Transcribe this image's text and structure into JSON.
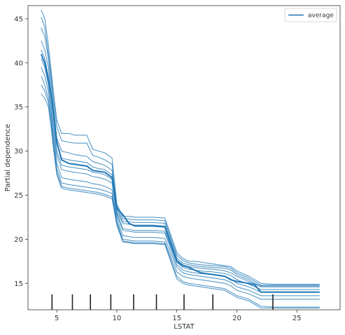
{
  "chart_data": {
    "type": "line",
    "xlabel": "LSTAT",
    "ylabel": "Partial dependence",
    "xlim": [
      2.6,
      28.6
    ],
    "ylim": [
      12.0,
      46.5
    ],
    "x_ticks": [
      5,
      10,
      15,
      20,
      25
    ],
    "y_ticks": [
      15,
      20,
      25,
      30,
      35,
      40,
      45
    ],
    "grid": false,
    "legend": {
      "position": "top-right",
      "entries": [
        "average"
      ]
    },
    "series_color": "#1f77b4",
    "x": [
      3.7,
      4.0,
      4.3,
      4.5,
      4.7,
      5.0,
      5.4,
      6.0,
      6.5,
      7.0,
      7.5,
      8.0,
      8.5,
      9.0,
      9.6,
      10.0,
      10.5,
      11.0,
      11.5,
      12.0,
      13.0,
      14.0,
      15.0,
      15.5,
      16.0,
      16.5,
      17.0,
      18.0,
      19.0,
      19.5,
      20.0,
      21.0,
      21.5,
      22.0,
      23.0,
      25.0,
      26.9
    ],
    "average": [
      41.0,
      40.0,
      38.0,
      36.5,
      34.5,
      31.0,
      29.0,
      28.6,
      28.5,
      28.4,
      28.3,
      27.8,
      27.7,
      27.6,
      27.0,
      23.5,
      22.8,
      21.8,
      21.5,
      21.5,
      21.5,
      21.4,
      17.5,
      17.0,
      16.8,
      16.5,
      16.2,
      16.0,
      15.8,
      15.4,
      15.2,
      15.0,
      14.8,
      14.0,
      14.0,
      14.0,
      14.0
    ],
    "ice_curves": [
      [
        46.0,
        45.0,
        42.0,
        39.5,
        37.0,
        33.5,
        32.0,
        32.0,
        31.8,
        31.8,
        31.8,
        30.2,
        30.0,
        29.8,
        29.2,
        24.0,
        22.6,
        22.6,
        22.5,
        22.5,
        22.5,
        22.4,
        18.5,
        17.8,
        17.5,
        17.5,
        17.4,
        17.2,
        17.0,
        16.9,
        16.4,
        15.8,
        15.4,
        15.0,
        14.9,
        14.9,
        14.9
      ],
      [
        45.2,
        44.0,
        41.0,
        38.8,
        36.2,
        32.8,
        31.2,
        31.0,
        30.9,
        30.9,
        30.9,
        29.5,
        29.3,
        29.0,
        28.5,
        23.8,
        22.3,
        22.3,
        22.2,
        22.2,
        22.2,
        22.1,
        18.2,
        17.6,
        17.3,
        17.2,
        17.1,
        17.0,
        16.9,
        16.7,
        16.2,
        15.6,
        15.2,
        14.8,
        14.8,
        14.8,
        14.8
      ],
      [
        44.0,
        43.0,
        40.5,
        38.0,
        35.5,
        31.5,
        30.0,
        29.8,
        29.6,
        29.5,
        29.4,
        28.8,
        28.6,
        28.4,
        27.8,
        23.5,
        22.0,
        22.0,
        21.9,
        21.9,
        21.9,
        21.8,
        17.9,
        17.3,
        17.1,
        17.0,
        16.9,
        16.8,
        16.7,
        16.5,
        16.0,
        15.4,
        15.0,
        14.7,
        14.7,
        14.7,
        14.7
      ],
      [
        42.5,
        41.5,
        39.5,
        37.0,
        34.8,
        31.0,
        29.2,
        29.0,
        28.9,
        28.8,
        28.7,
        28.2,
        28.0,
        27.9,
        27.3,
        23.2,
        21.8,
        21.7,
        21.6,
        21.6,
        21.6,
        21.5,
        17.7,
        17.1,
        16.9,
        16.8,
        16.7,
        16.6,
        16.4,
        16.2,
        15.8,
        15.2,
        14.9,
        14.6,
        14.6,
        14.6,
        14.6
      ],
      [
        41.5,
        40.5,
        38.5,
        36.5,
        34.0,
        30.0,
        28.4,
        28.2,
        28.1,
        28.0,
        27.9,
        27.6,
        27.5,
        27.3,
        26.8,
        23.0,
        21.2,
        21.1,
        21.0,
        21.0,
        21.0,
        20.9,
        17.4,
        16.8,
        16.6,
        16.5,
        16.4,
        16.3,
        16.1,
        15.9,
        15.4,
        14.9,
        14.6,
        14.3,
        14.3,
        14.3,
        14.3
      ],
      [
        40.5,
        39.5,
        37.5,
        35.5,
        33.0,
        29.5,
        27.9,
        27.7,
        27.6,
        27.5,
        27.4,
        27.1,
        27.0,
        26.8,
        26.4,
        22.8,
        21.0,
        20.9,
        20.8,
        20.8,
        20.8,
        20.7,
        17.1,
        16.5,
        16.3,
        16.2,
        16.1,
        16.0,
        15.8,
        15.5,
        15.0,
        14.6,
        14.3,
        14.0,
        14.0,
        14.0,
        14.0
      ],
      [
        39.5,
        38.5,
        36.8,
        34.8,
        32.2,
        28.6,
        27.0,
        26.8,
        26.7,
        26.6,
        26.5,
        26.3,
        26.2,
        26.0,
        25.6,
        22.4,
        20.4,
        20.3,
        20.2,
        20.2,
        20.2,
        20.1,
        16.8,
        16.2,
        16.0,
        15.9,
        15.8,
        15.6,
        15.4,
        15.1,
        14.6,
        14.2,
        13.9,
        13.6,
        13.6,
        13.6,
        13.6
      ],
      [
        38.5,
        37.5,
        36.0,
        34.0,
        31.5,
        28.0,
        26.4,
        26.2,
        26.1,
        26.0,
        25.9,
        25.8,
        25.7,
        25.5,
        25.2,
        22.0,
        20.0,
        19.9,
        19.8,
        19.8,
        19.8,
        19.7,
        16.3,
        15.8,
        15.6,
        15.5,
        15.4,
        15.2,
        15.0,
        14.7,
        14.2,
        13.8,
        13.5,
        13.2,
        13.2,
        13.2,
        13.2
      ],
      [
        37.5,
        36.8,
        35.5,
        33.5,
        31.0,
        27.6,
        26.0,
        25.8,
        25.7,
        25.6,
        25.5,
        25.4,
        25.3,
        25.1,
        24.8,
        21.8,
        19.8,
        19.7,
        19.6,
        19.6,
        19.6,
        19.5,
        15.8,
        15.2,
        15.0,
        14.9,
        14.8,
        14.6,
        14.4,
        14.0,
        13.6,
        13.2,
        12.8,
        12.4,
        12.3,
        12.3,
        12.3
      ],
      [
        36.5,
        36.0,
        35.0,
        33.0,
        30.5,
        27.3,
        25.8,
        25.6,
        25.5,
        25.4,
        25.3,
        25.2,
        25.1,
        24.9,
        24.6,
        21.6,
        19.7,
        19.6,
        19.5,
        19.5,
        19.5,
        19.4,
        15.5,
        15.0,
        14.8,
        14.7,
        14.6,
        14.4,
        14.2,
        13.8,
        13.4,
        13.0,
        12.6,
        12.2,
        12.2,
        12.2,
        12.2
      ]
    ],
    "rug_x": [
      4.6,
      6.3,
      7.8,
      9.5,
      11.4,
      13.3,
      15.6,
      18.0,
      23.0
    ]
  }
}
